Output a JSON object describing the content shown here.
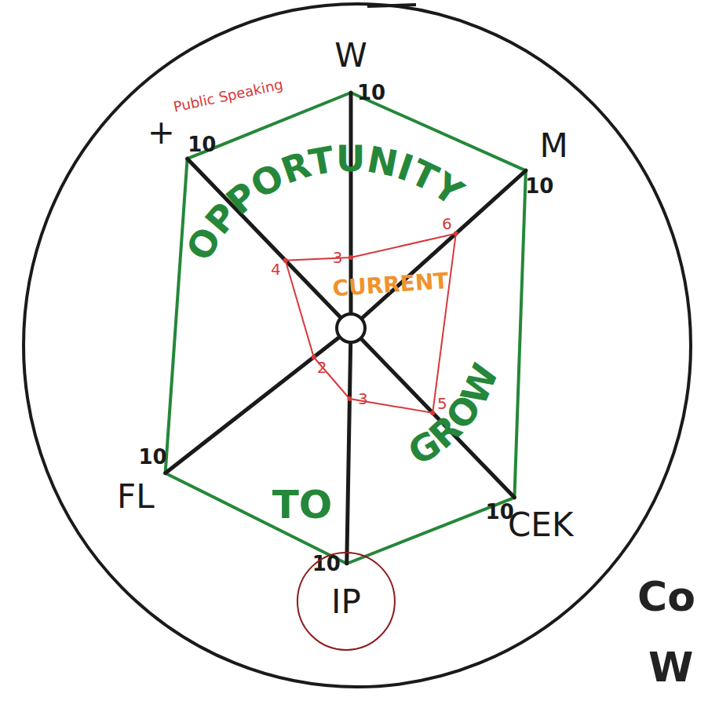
{
  "chart_data": {
    "type": "radar",
    "categories": [
      "W",
      "M",
      "CEK",
      "IP",
      "FL",
      "+"
    ],
    "values": [
      3,
      6,
      5,
      3,
      2,
      4
    ],
    "color": "#d7383b",
    "ylim": [
      0,
      10
    ],
    "yticks": [
      10
    ],
    "grid": true,
    "data_labels": true,
    "annotations": [
      {
        "text": "Public Speaking",
        "color": "#d7383b"
      },
      {
        "text": "OPPORTUNITY",
        "color": "#25873a"
      },
      {
        "text": "TO",
        "color": "#25873a"
      },
      {
        "text": "GROW",
        "color": "#25873a"
      },
      {
        "text": "CURRENT",
        "color": "#f0932b"
      },
      {
        "text": "Co",
        "color": "#222222"
      },
      {
        "text": "W",
        "color": "#222222"
      }
    ]
  }
}
